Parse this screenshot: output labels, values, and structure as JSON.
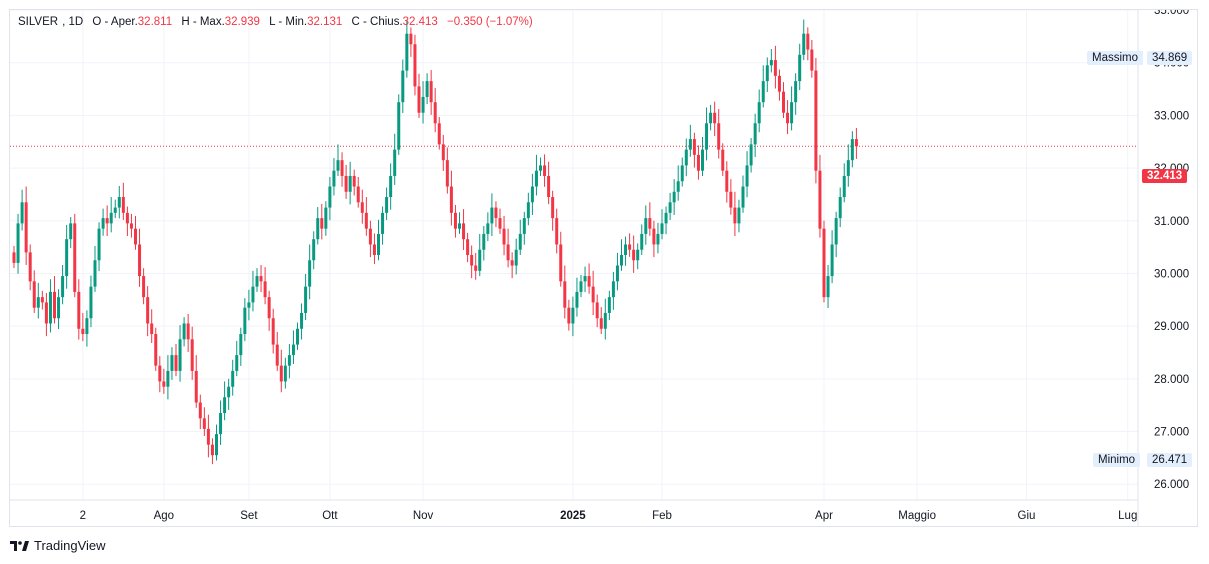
{
  "legend": {
    "symbol": "SILVER",
    "timeframe": "1D",
    "open_label": "O",
    "open_prefix": "- Aper.",
    "open_value": "32.811",
    "high_label": "H",
    "high_prefix": "- Max.",
    "high_value": "32.939",
    "low_label": "L",
    "low_prefix": "- Min.",
    "low_value": "32.131",
    "close_label": "C",
    "close_prefix": "- Chius.",
    "close_value": "32.413",
    "change": "−0.350 (−1.07%)"
  },
  "badges": {
    "max_label": "Massimo",
    "max_value": "34.869",
    "min_label": "Minimo",
    "min_value": "26.471",
    "last_price": "32.413"
  },
  "brand": {
    "name": "TradingView"
  },
  "colors": {
    "up": "#089981",
    "down": "#f23645",
    "grid": "#f0f3fa",
    "axis_text": "#131722",
    "price_line": "#f23645"
  },
  "chart_data": {
    "type": "candlestick",
    "title": "SILVER, 1D",
    "ylim": [
      25.7,
      35.0
    ],
    "y_ticks": [
      {
        "value": 26,
        "label": "26.000"
      },
      {
        "value": 27,
        "label": "27.000"
      },
      {
        "value": 28,
        "label": "28.000"
      },
      {
        "value": 29,
        "label": "29.000"
      },
      {
        "value": 30,
        "label": "30.000"
      },
      {
        "value": 31,
        "label": "31.000"
      },
      {
        "value": 32,
        "label": "32.000"
      },
      {
        "value": 33,
        "label": "33.000"
      },
      {
        "value": 34,
        "label": "34.000"
      },
      {
        "value": 35,
        "label": "35.000"
      }
    ],
    "x_ticks": [
      {
        "index": 17,
        "label": "2",
        "bold": false
      },
      {
        "index": 37,
        "label": "Ago",
        "bold": false
      },
      {
        "index": 58,
        "label": "Set",
        "bold": false
      },
      {
        "index": 78,
        "label": "Ott",
        "bold": false
      },
      {
        "index": 101,
        "label": "Nov",
        "bold": false
      },
      {
        "index": 138,
        "label": "2025",
        "bold": true
      },
      {
        "index": 160,
        "label": "Feb",
        "bold": false
      },
      {
        "index": 200,
        "label": "Apr",
        "bold": false
      },
      {
        "index": 223,
        "label": "Maggio",
        "bold": false
      },
      {
        "index": 250,
        "label": "Giu",
        "bold": false
      },
      {
        "index": 275,
        "label": "Lug",
        "bold": false
      }
    ],
    "last_close": 32.413,
    "series": [
      {
        "name": "SILVER",
        "closes": [
          30.2,
          30.95,
          31.35,
          30.4,
          29.85,
          29.35,
          29.55,
          29.45,
          29.05,
          29.65,
          29.15,
          29.55,
          29.95,
          30.65,
          30.95,
          29.65,
          28.95,
          28.85,
          29.15,
          29.75,
          30.25,
          30.85,
          31.05,
          30.95,
          31.15,
          31.25,
          31.45,
          31.15,
          30.95,
          30.85,
          30.55,
          29.95,
          29.55,
          29.05,
          28.85,
          28.25,
          27.95,
          27.85,
          28.15,
          28.45,
          28.15,
          28.75,
          29.05,
          28.75,
          28.15,
          27.55,
          27.25,
          27.05,
          26.75,
          26.55,
          26.95,
          27.35,
          27.65,
          27.85,
          28.15,
          28.45,
          28.85,
          29.35,
          29.45,
          29.75,
          29.95,
          29.85,
          29.55,
          29.15,
          28.65,
          28.25,
          27.95,
          28.25,
          28.45,
          28.65,
          28.95,
          29.25,
          29.75,
          30.25,
          30.65,
          31.05,
          30.85,
          31.25,
          31.65,
          31.95,
          32.15,
          31.85,
          31.55,
          31.85,
          31.65,
          31.35,
          31.15,
          30.85,
          30.55,
          30.35,
          30.75,
          31.15,
          31.45,
          31.85,
          32.35,
          33.25,
          33.85,
          34.55,
          34.35,
          33.55,
          33.05,
          33.35,
          33.65,
          33.25,
          32.85,
          32.45,
          32.15,
          31.65,
          31.15,
          30.85,
          30.95,
          30.65,
          30.35,
          30.15,
          30.05,
          30.45,
          30.75,
          30.95,
          31.25,
          31.05,
          30.85,
          30.55,
          30.25,
          30.15,
          30.45,
          30.75,
          31.05,
          31.35,
          31.65,
          31.95,
          32.05,
          31.85,
          31.45,
          31.05,
          30.55,
          29.85,
          29.35,
          29.05,
          29.35,
          29.65,
          29.85,
          29.95,
          29.75,
          29.45,
          29.15,
          28.95,
          29.25,
          29.55,
          29.85,
          30.15,
          30.35,
          30.55,
          30.45,
          30.25,
          30.45,
          30.75,
          31.05,
          30.85,
          30.55,
          30.75,
          30.95,
          31.15,
          31.35,
          31.55,
          31.75,
          32.05,
          32.35,
          32.55,
          32.25,
          31.95,
          32.35,
          32.85,
          33.05,
          32.85,
          32.35,
          31.95,
          31.55,
          31.25,
          30.95,
          31.25,
          31.65,
          32.05,
          32.45,
          32.85,
          33.25,
          33.65,
          33.95,
          34.05,
          33.75,
          33.45,
          33.05,
          32.85,
          33.25,
          33.65,
          34.15,
          34.55,
          34.25,
          33.85,
          31.95,
          30.85,
          29.55,
          29.95,
          30.55,
          31.05,
          31.45,
          31.85,
          32.15,
          32.55,
          32.413
        ]
      }
    ]
  }
}
